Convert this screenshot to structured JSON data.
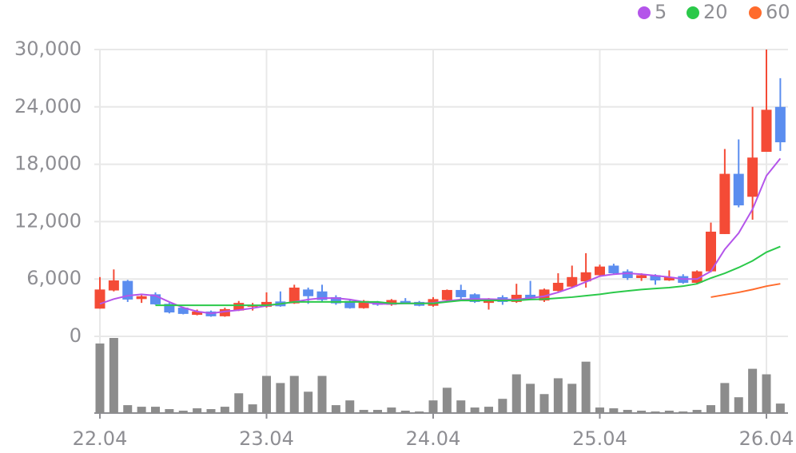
{
  "chart_data": {
    "type": "candlestick",
    "categories": [
      "22.04",
      null,
      null,
      null,
      null,
      null,
      null,
      null,
      null,
      null,
      null,
      null,
      "23.04",
      null,
      null,
      null,
      null,
      null,
      null,
      null,
      null,
      null,
      null,
      null,
      "24.04",
      null,
      null,
      null,
      null,
      null,
      null,
      null,
      null,
      null,
      null,
      null,
      "25.04",
      null,
      null,
      null,
      null,
      null,
      null,
      null,
      null,
      null,
      null,
      null,
      "26.04",
      null
    ],
    "open": [
      2900,
      4800,
      5800,
      3900,
      4400,
      3400,
      3000,
      2250,
      2600,
      2100,
      2700,
      3100,
      3100,
      3650,
      3450,
      4900,
      4700,
      4100,
      3700,
      2950,
      3600,
      3300,
      3700,
      3600,
      3200,
      3800,
      4850,
      4400,
      3500,
      4100,
      3600,
      4350,
      3750,
      4750,
      5200,
      5750,
      6400,
      7400,
      6800,
      6100,
      6400,
      5850,
      6300,
      5600,
      6800,
      10700,
      17000,
      14600,
      19300,
      24000
    ],
    "high": [
      6200,
      7000,
      5900,
      4300,
      4600,
      3500,
      3100,
      2800,
      2700,
      3000,
      3700,
      3500,
      4600,
      4700,
      5400,
      5100,
      5400,
      4300,
      3900,
      3800,
      3700,
      3900,
      4000,
      3700,
      4100,
      4900,
      5400,
      4500,
      4000,
      4300,
      5500,
      5800,
      5000,
      6600,
      7400,
      8700,
      7500,
      7600,
      7000,
      6600,
      6500,
      6900,
      6500,
      6900,
      11900,
      19600,
      20600,
      24000,
      30000,
      27000
    ],
    "low": [
      2900,
      4700,
      3600,
      3500,
      3300,
      2400,
      2300,
      2200,
      2050,
      2050,
      2650,
      2700,
      3000,
      3100,
      3400,
      3400,
      3600,
      3300,
      2900,
      2900,
      3200,
      3200,
      3400,
      3150,
      3100,
      3750,
      3900,
      3500,
      2800,
      3300,
      3500,
      3900,
      3600,
      4700,
      5100,
      5100,
      6300,
      6500,
      5900,
      5800,
      5400,
      5800,
      5500,
      5500,
      6700,
      10700,
      13500,
      12200,
      19300,
      19400
    ],
    "close": [
      4900,
      5850,
      3850,
      4200,
      3350,
      2500,
      2350,
      2600,
      2100,
      2850,
      3500,
      3300,
      3600,
      3150,
      5100,
      4200,
      3800,
      3450,
      2950,
      3700,
      3300,
      3800,
      3450,
      3200,
      3900,
      4850,
      4100,
      3600,
      3850,
      3600,
      4350,
      4000,
      4900,
      5600,
      6200,
      6700,
      7300,
      6600,
      6100,
      6400,
      5850,
      6200,
      5600,
      6800,
      10950,
      17000,
      13700,
      18700,
      23700,
      20300
    ],
    "up_color": "#f44b36",
    "down_color": "#5b8def",
    "series": [
      {
        "name": "5",
        "color": "#b455ea",
        "values": [
          3400,
          3900,
          4250,
          4400,
          4250,
          3600,
          3000,
          2600,
          2400,
          2600,
          2750,
          2950,
          3200,
          3400,
          3600,
          3850,
          4000,
          4000,
          3850,
          3600,
          3400,
          3400,
          3450,
          3450,
          3500,
          3700,
          3850,
          3900,
          3900,
          3850,
          3850,
          4000,
          4200,
          4600,
          5100,
          5700,
          6300,
          6500,
          6600,
          6500,
          6350,
          6200,
          6000,
          6000,
          6800,
          9100,
          10800,
          13300,
          16800,
          18600
        ]
      },
      {
        "name": "20",
        "color": "#2bc94a",
        "values": [
          null,
          null,
          null,
          null,
          3250,
          3250,
          3250,
          3250,
          3250,
          3250,
          3250,
          3250,
          3250,
          3400,
          3600,
          3600,
          3600,
          3600,
          3600,
          3600,
          3600,
          3450,
          3450,
          3450,
          3450,
          3600,
          3750,
          3750,
          3750,
          3750,
          3750,
          3850,
          3900,
          4000,
          4100,
          4250,
          4400,
          4600,
          4750,
          4900,
          5000,
          5100,
          5250,
          5500,
          6100,
          6600,
          7200,
          7900,
          8800,
          9400
        ]
      },
      {
        "name": "60",
        "color": "#ff6b2c",
        "values": [
          null,
          null,
          null,
          null,
          null,
          null,
          null,
          null,
          null,
          null,
          null,
          null,
          null,
          null,
          null,
          null,
          null,
          null,
          null,
          null,
          null,
          null,
          null,
          null,
          null,
          null,
          null,
          null,
          null,
          null,
          null,
          null,
          null,
          null,
          null,
          null,
          null,
          null,
          null,
          null,
          null,
          null,
          null,
          null,
          4100,
          4350,
          4600,
          4900,
          5250,
          5500
        ]
      }
    ],
    "volume": {
      "color": "#8c8c8c",
      "values": [
        88,
        95,
        10,
        8,
        8,
        5,
        3,
        6,
        5,
        8,
        25,
        11,
        47,
        38,
        47,
        27,
        47,
        10,
        16,
        4,
        4,
        7,
        3,
        2,
        16,
        32,
        16,
        7,
        8,
        18,
        49,
        37,
        24,
        44,
        37,
        65,
        7,
        6,
        4,
        3,
        2,
        3,
        2,
        4,
        10,
        38,
        20,
        56,
        49,
        12
      ]
    },
    "ylim": [
      0,
      30000
    ],
    "yticks": [
      0,
      {
        "value": 6000,
        "label": "6,000"
      },
      {
        "value": 12000,
        "label": "12,000"
      },
      {
        "value": 18000,
        "label": "18,000"
      },
      {
        "value": 24000,
        "label": "24,000"
      },
      {
        "value": 30000,
        "label": "30,000"
      }
    ],
    "grid": true,
    "legend": "top-right"
  }
}
